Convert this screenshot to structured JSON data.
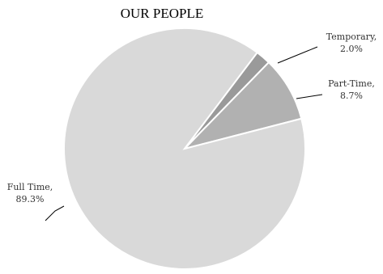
{
  "chart_data": {
    "type": "pie",
    "title": "OUR PEOPLE",
    "slices": [
      {
        "name": "Temporary",
        "value": 2.0,
        "display": "2.0%",
        "color": "#9a9a9a"
      },
      {
        "name": "Part-Time",
        "value": 8.7,
        "display": "8.7%",
        "color": "#b1b1b1"
      },
      {
        "name": "Full Time",
        "value": 89.3,
        "display": "89.3%",
        "color": "#d9d9d9"
      }
    ],
    "legend": "none"
  }
}
